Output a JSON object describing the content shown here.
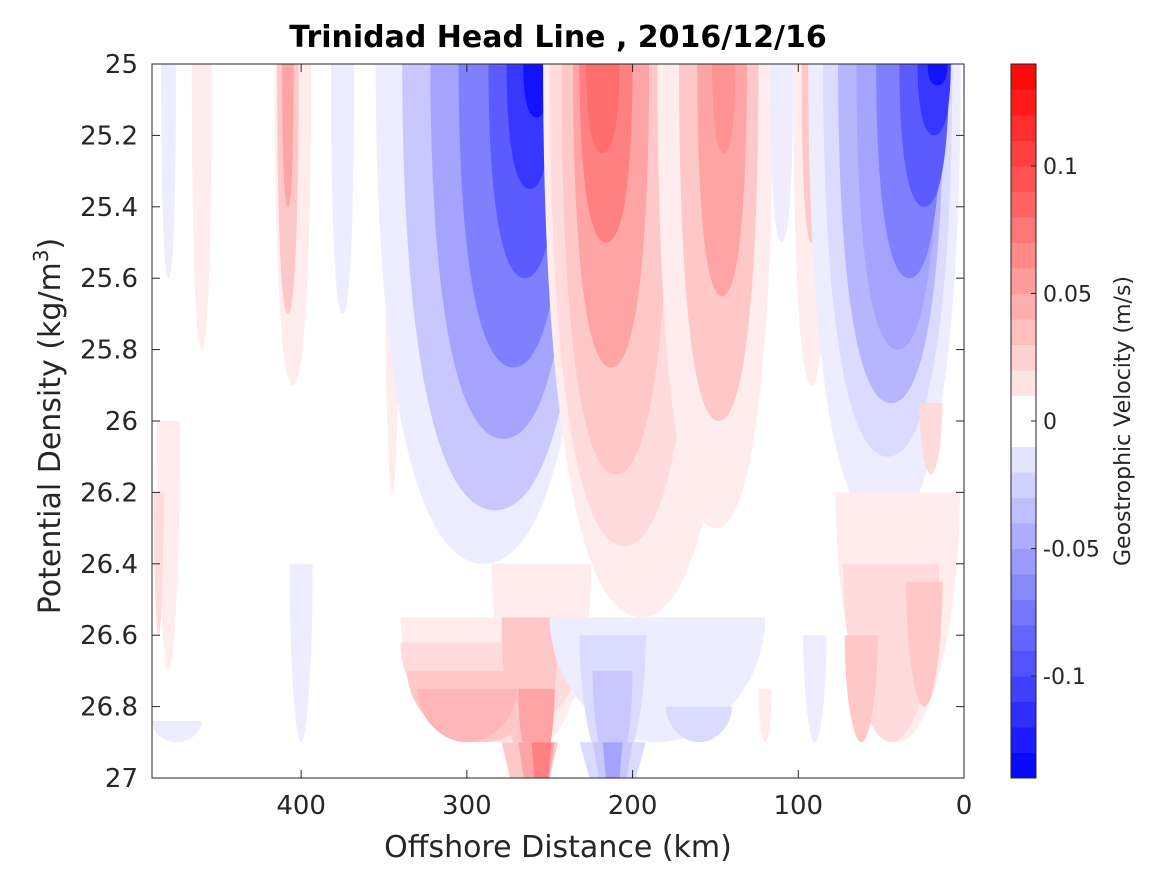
{
  "chart_data": {
    "type": "heatmap",
    "title": "Trinidad Head Line , 2016/12/16",
    "xlabel": "Offshore Distance (km)",
    "ylabel_main": "Potential Density (kg/m",
    "ylabel_sup": "3",
    "ylabel_close": ")",
    "xlim": [
      490,
      0
    ],
    "ylim": [
      25,
      27
    ],
    "y_reversed": true,
    "x_ticks": [
      {
        "value": 400,
        "label": "400"
      },
      {
        "value": 300,
        "label": "300"
      },
      {
        "value": 200,
        "label": "200"
      },
      {
        "value": 100,
        "label": "100"
      },
      {
        "value": 0,
        "label": "0"
      }
    ],
    "y_ticks": [
      {
        "value": 25,
        "label": "25"
      },
      {
        "value": 25.2,
        "label": "25.2"
      },
      {
        "value": 25.4,
        "label": "25.4"
      },
      {
        "value": 25.6,
        "label": "25.6"
      },
      {
        "value": 25.8,
        "label": "25.8"
      },
      {
        "value": 26,
        "label": "26"
      },
      {
        "value": 26.2,
        "label": "26.2"
      },
      {
        "value": 26.4,
        "label": "26.4"
      },
      {
        "value": 26.6,
        "label": "26.6"
      },
      {
        "value": 26.8,
        "label": "26.8"
      },
      {
        "value": 27,
        "label": "27"
      }
    ],
    "colorbar": {
      "label": "Geostrophic Velocity (m/s)",
      "range": [
        -0.14,
        0.14
      ],
      "step": 0.01,
      "negative_color": "#0000ff",
      "positive_color": "#ff0000",
      "zero_color": "#ffffff",
      "ticks": [
        {
          "value": 0.1,
          "label": "0.1"
        },
        {
          "value": 0.05,
          "label": "0.05"
        },
        {
          "value": 0,
          "label": "0"
        },
        {
          "value": -0.05,
          "label": "-0.05"
        },
        {
          "value": -0.1,
          "label": "-0.1"
        }
      ]
    },
    "features": [
      {
        "x": 480,
        "w": 9,
        "y0": 25.0,
        "y1": 25.6,
        "v": -0.01
      },
      {
        "x": 460,
        "w": 12,
        "y0": 25.0,
        "y1": 25.8,
        "v": 0.01
      },
      {
        "x": 480,
        "w": 14,
        "y0": 26.0,
        "y1": 26.7,
        "v": 0.01
      },
      {
        "x": 486,
        "w": 6,
        "y0": 26.2,
        "y1": 26.6,
        "v": 0.02
      },
      {
        "x": 405,
        "w": 22,
        "y0": 25.0,
        "y1": 25.9,
        "v": 0.01
      },
      {
        "x": 408,
        "w": 13,
        "y0": 25.0,
        "y1": 25.7,
        "v": 0.03
      },
      {
        "x": 408,
        "w": 7,
        "y0": 25.0,
        "y1": 25.4,
        "v": 0.05
      },
      {
        "x": 375,
        "w": 14,
        "y0": 25.0,
        "y1": 25.7,
        "v": -0.01
      },
      {
        "x": 345,
        "w": 8,
        "y0": 25.7,
        "y1": 26.2,
        "v": 0.01
      },
      {
        "x": 400,
        "w": 14,
        "y0": 26.4,
        "y1": 26.9,
        "v": -0.01
      },
      {
        "x": 290,
        "w": 130,
        "y0": 25.0,
        "y1": 26.4,
        "v": -0.01
      },
      {
        "x": 283,
        "w": 112,
        "y0": 25.0,
        "y1": 26.25,
        "v": -0.03
      },
      {
        "x": 278,
        "w": 88,
        "y0": 25.0,
        "y1": 26.05,
        "v": -0.05
      },
      {
        "x": 272,
        "w": 66,
        "y0": 25.0,
        "y1": 25.85,
        "v": -0.07
      },
      {
        "x": 265,
        "w": 44,
        "y0": 25.0,
        "y1": 25.6,
        "v": -0.09
      },
      {
        "x": 262,
        "w": 28,
        "y0": 25.0,
        "y1": 25.35,
        "v": -0.11
      },
      {
        "x": 258,
        "w": 16,
        "y0": 25.0,
        "y1": 25.15,
        "v": -0.13
      },
      {
        "x": 195,
        "w": 118,
        "y0": 25.0,
        "y1": 26.55,
        "v": 0.01
      },
      {
        "x": 205,
        "w": 90,
        "y0": 25.0,
        "y1": 26.35,
        "v": 0.02
      },
      {
        "x": 210,
        "w": 66,
        "y0": 25.0,
        "y1": 26.15,
        "v": 0.03
      },
      {
        "x": 213,
        "w": 46,
        "y0": 25.0,
        "y1": 25.85,
        "v": 0.05
      },
      {
        "x": 216,
        "w": 32,
        "y0": 25.0,
        "y1": 25.5,
        "v": 0.07
      },
      {
        "x": 218,
        "w": 20,
        "y0": 25.0,
        "y1": 25.25,
        "v": 0.08
      },
      {
        "x": 150,
        "w": 70,
        "y0": 25.0,
        "y1": 26.3,
        "v": 0.01
      },
      {
        "x": 148,
        "w": 48,
        "y0": 25.0,
        "y1": 26.0,
        "v": 0.03
      },
      {
        "x": 146,
        "w": 30,
        "y0": 25.0,
        "y1": 25.65,
        "v": 0.05
      },
      {
        "x": 145,
        "w": 14,
        "y0": 25.0,
        "y1": 25.25,
        "v": 0.06
      },
      {
        "x": 92,
        "w": 22,
        "y0": 25.0,
        "y1": 25.9,
        "v": 0.01
      },
      {
        "x": 92,
        "w": 12,
        "y0": 25.0,
        "y1": 25.5,
        "v": 0.03
      },
      {
        "x": 110,
        "w": 14,
        "y0": 25.0,
        "y1": 25.5,
        "v": -0.01
      },
      {
        "x": 48,
        "w": 92,
        "y0": 25.0,
        "y1": 26.3,
        "v": -0.01
      },
      {
        "x": 46,
        "w": 78,
        "y0": 25.0,
        "y1": 26.1,
        "v": -0.02
      },
      {
        "x": 44,
        "w": 64,
        "y0": 25.0,
        "y1": 25.95,
        "v": -0.04
      },
      {
        "x": 40,
        "w": 50,
        "y0": 25.0,
        "y1": 25.8,
        "v": -0.05
      },
      {
        "x": 33,
        "w": 40,
        "y0": 25.0,
        "y1": 25.6,
        "v": -0.07
      },
      {
        "x": 24,
        "w": 30,
        "y0": 25.0,
        "y1": 25.4,
        "v": -0.09
      },
      {
        "x": 18,
        "w": 20,
        "y0": 25.0,
        "y1": 25.2,
        "v": -0.11
      },
      {
        "x": 16,
        "w": 12,
        "y0": 25.0,
        "y1": 25.06,
        "v": -0.13
      },
      {
        "x": 20,
        "w": 14,
        "y0": 25.95,
        "y1": 26.15,
        "v": 0.02
      },
      {
        "x": 40,
        "w": 75,
        "y0": 26.2,
        "y1": 26.9,
        "v": 0.01
      },
      {
        "x": 44,
        "w": 58,
        "y0": 26.4,
        "y1": 26.9,
        "v": 0.02
      },
      {
        "x": 24,
        "w": 22,
        "y0": 26.45,
        "y1": 26.8,
        "v": 0.03
      },
      {
        "x": 62,
        "w": 20,
        "y0": 26.6,
        "y1": 26.9,
        "v": 0.03
      },
      {
        "x": 90,
        "w": 14,
        "y0": 26.6,
        "y1": 26.9,
        "v": -0.01
      },
      {
        "x": 120,
        "w": 8,
        "y0": 26.75,
        "y1": 26.9,
        "v": 0.01
      },
      {
        "x": 255,
        "w": 60,
        "y0": 26.4,
        "y1": 26.9,
        "v": 0.01
      },
      {
        "x": 280,
        "w": 120,
        "y0": 26.55,
        "y1": 26.9,
        "v": 0.01
      },
      {
        "x": 285,
        "w": 110,
        "y0": 26.62,
        "y1": 26.9,
        "v": 0.02
      },
      {
        "x": 292,
        "w": 88,
        "y0": 26.7,
        "y1": 26.9,
        "v": 0.03
      },
      {
        "x": 262,
        "w": 34,
        "y0": 26.55,
        "y1": 27.0,
        "v": 0.03
      },
      {
        "x": 300,
        "w": 60,
        "y0": 26.75,
        "y1": 26.9,
        "v": 0.04
      },
      {
        "x": 258,
        "w": 22,
        "y0": 26.75,
        "y1": 27.0,
        "v": 0.05
      },
      {
        "x": 255,
        "w": 12,
        "y0": 26.9,
        "y1": 27.0,
        "v": 0.07
      },
      {
        "x": 185,
        "w": 130,
        "y0": 26.55,
        "y1": 26.9,
        "v": -0.01
      },
      {
        "x": 212,
        "w": 40,
        "y0": 26.6,
        "y1": 27.0,
        "v": -0.02
      },
      {
        "x": 212,
        "w": 24,
        "y0": 26.7,
        "y1": 27.0,
        "v": -0.03
      },
      {
        "x": 212,
        "w": 12,
        "y0": 26.9,
        "y1": 27.0,
        "v": -0.05
      },
      {
        "x": 160,
        "w": 40,
        "y0": 26.8,
        "y1": 26.9,
        "v": -0.02
      },
      {
        "x": 475,
        "w": 30,
        "y0": 26.84,
        "y1": 26.9,
        "v": -0.01
      }
    ]
  }
}
